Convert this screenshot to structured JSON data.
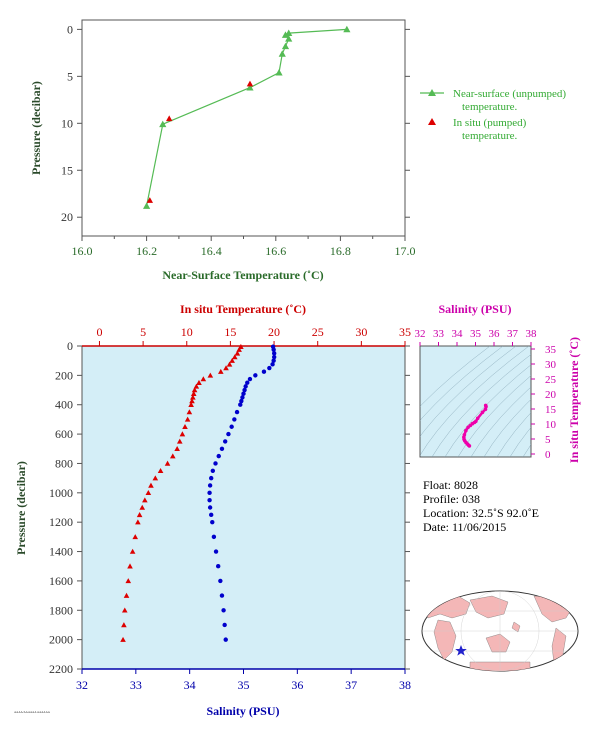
{
  "chart_data": [
    {
      "type": "line",
      "xlabel": "Near-Surface Temperature (˚C)",
      "ylabel": "Pressure (decibar)",
      "xlim": [
        16.0,
        17.0
      ],
      "ylim": [
        22,
        -1
      ],
      "xticks": [
        "16.0",
        "16.2",
        "16.4",
        "16.6",
        "16.8",
        "17.0"
      ],
      "yticks": [
        "0",
        "5",
        "10",
        "15",
        "20"
      ],
      "series": [
        {
          "name": "Near-surface (unpumped) temperature.",
          "marker": "triangle",
          "color": "#55bb55",
          "x": [
            16.82,
            16.64,
            16.63,
            16.64,
            16.63,
            16.62,
            16.61,
            16.52,
            16.25,
            16.2
          ],
          "y": [
            0.0,
            0.4,
            0.6,
            1.0,
            1.8,
            2.6,
            4.6,
            6.2,
            10.1,
            18.8
          ]
        },
        {
          "name": "In situ (pumped) temperature.",
          "marker": "triangle",
          "color": "#dd0000",
          "x": [
            16.52,
            16.27,
            16.21
          ],
          "y": [
            5.8,
            9.5,
            18.2
          ]
        }
      ],
      "legend": [
        {
          "line1": "Near-surface (unpumped)",
          "line2": "temperature."
        },
        {
          "line1": "In situ (pumped)",
          "line2": "temperature."
        }
      ],
      "legend_position": "right"
    },
    {
      "type": "line",
      "xlabel_top": "In situ Temperature (˚C)",
      "xlabel_bottom": "Salinity (PSU)",
      "ylabel": "Pressure (decibar)",
      "xlim_top": [
        -2,
        35
      ],
      "xlim_bottom": [
        32,
        38
      ],
      "ylim": [
        2200,
        0
      ],
      "xticks_top": [
        "0",
        "5",
        "10",
        "15",
        "20",
        "25",
        "30",
        "35"
      ],
      "xticks_bottom": [
        "32",
        "33",
        "34",
        "35",
        "36",
        "37",
        "38"
      ],
      "yticks": [
        "0",
        "200",
        "400",
        "600",
        "800",
        "1000",
        "1200",
        "1400",
        "1600",
        "1800",
        "2000",
        "2200"
      ],
      "series": [
        {
          "name": "In situ Temperature (˚C)",
          "marker": "triangle",
          "color": "#dd0000",
          "pressure": [
            5,
            25,
            50,
            75,
            100,
            125,
            150,
            175,
            200,
            225,
            250,
            275,
            300,
            325,
            350,
            375,
            400,
            450,
            500,
            550,
            600,
            650,
            700,
            750,
            800,
            850,
            900,
            950,
            1000,
            1050,
            1100,
            1150,
            1200,
            1300,
            1400,
            1500,
            1600,
            1700,
            1800,
            1900,
            2000
          ],
          "values": [
            16.2,
            16.0,
            15.8,
            15.5,
            15.2,
            14.9,
            14.5,
            13.9,
            12.7,
            11.9,
            11.4,
            11.1,
            10.9,
            10.8,
            10.7,
            10.6,
            10.5,
            10.3,
            10.1,
            9.8,
            9.5,
            9.2,
            8.9,
            8.4,
            7.8,
            7.0,
            6.4,
            5.9,
            5.6,
            5.2,
            4.9,
            4.6,
            4.4,
            4.1,
            3.8,
            3.5,
            3.3,
            3.1,
            2.9,
            2.8,
            2.7
          ]
        },
        {
          "name": "Salinity (PSU)",
          "marker": "circle",
          "color": "#0000cc",
          "pressure": [
            5,
            25,
            50,
            75,
            100,
            125,
            150,
            175,
            200,
            225,
            250,
            275,
            300,
            325,
            350,
            375,
            400,
            450,
            500,
            550,
            600,
            650,
            700,
            750,
            800,
            850,
            900,
            950,
            1000,
            1050,
            1100,
            1150,
            1200,
            1300,
            1400,
            1500,
            1600,
            1700,
            1800,
            1900,
            2000
          ],
          "values": [
            35.55,
            35.56,
            35.57,
            35.57,
            35.56,
            35.54,
            35.48,
            35.38,
            35.22,
            35.12,
            35.07,
            35.04,
            35.02,
            35.0,
            34.98,
            34.96,
            34.94,
            34.88,
            34.83,
            34.78,
            34.72,
            34.66,
            34.6,
            34.54,
            34.48,
            34.43,
            34.4,
            34.38,
            34.37,
            34.37,
            34.38,
            34.4,
            34.42,
            34.45,
            34.49,
            34.53,
            34.57,
            34.6,
            34.63,
            34.65,
            34.67
          ]
        }
      ]
    },
    {
      "type": "scatter",
      "xlabel": "Salinity (PSU)",
      "ylabel": "In situ Temperature (˚C)",
      "xlim": [
        32,
        38
      ],
      "ylim": [
        -1,
        36
      ],
      "xticks": [
        "32",
        "33",
        "34",
        "35",
        "36",
        "37",
        "38"
      ],
      "yticks": [
        "0",
        "5",
        "10",
        "15",
        "20",
        "25",
        "30",
        "35"
      ],
      "series": [
        {
          "name": "T-S",
          "color": "#ee00aa",
          "x": [
            34.67,
            34.63,
            34.57,
            34.49,
            34.42,
            34.38,
            34.37,
            34.4,
            34.48,
            34.6,
            34.72,
            34.83,
            34.94,
            35.02,
            35.12,
            35.38,
            35.54,
            35.57,
            35.55
          ],
          "y": [
            2.7,
            2.9,
            3.3,
            3.8,
            4.4,
            4.9,
            5.6,
            6.4,
            7.8,
            8.9,
            9.5,
            10.1,
            10.5,
            10.9,
            11.9,
            13.9,
            14.9,
            15.8,
            16.2
          ]
        }
      ]
    }
  ],
  "info": {
    "float": "Float:  8028",
    "profile": "Profile:  038",
    "location": "Location:  32.5˚S  92.0˚E",
    "date": "Date:  11/06/2015"
  },
  "map": {
    "marker": "star",
    "marker_color": "#2222cc",
    "ocean_color": "#ffffff",
    "land_color": "#f4b7b7"
  },
  "colors": {
    "panel_bg": "#d4eef7",
    "top_axis": "#2a6b2a",
    "temp": "#dd0000",
    "salinity": "#0000cc",
    "ts": "#ee00aa"
  },
  "credit": "AAAA/AAAAAA AAAAAA"
}
